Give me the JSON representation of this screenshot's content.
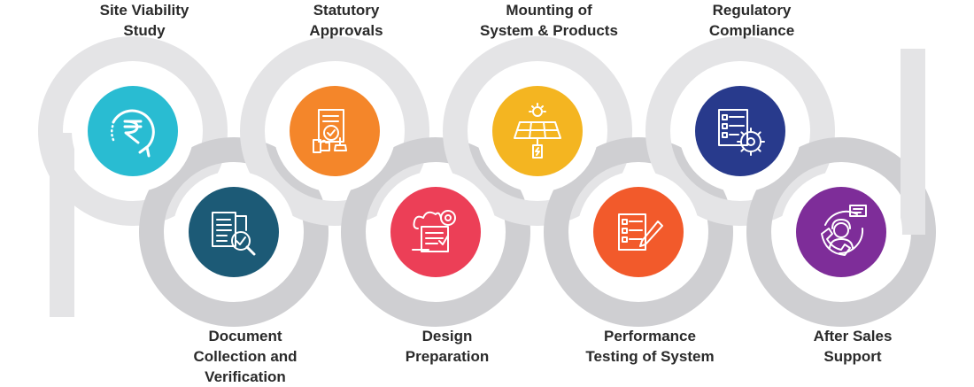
{
  "colors": {
    "track_light": "#e4e4e6",
    "track_dark": "#cfcfd2",
    "text": "#2a2a2a",
    "icon_line": "#ffffff"
  },
  "steps": [
    {
      "lines": [
        "Site Viability",
        "Study"
      ],
      "color": "#29bcd2",
      "icon": "rupee-cycle-icon"
    },
    {
      "lines": [
        "Document",
        "Collection and",
        "Verification"
      ],
      "color": "#1c5a76",
      "icon": "document-verification-icon"
    },
    {
      "lines": [
        "Statutory",
        "Approvals"
      ],
      "color": "#f4862a",
      "icon": "approval-stamp-icon"
    },
    {
      "lines": [
        "Design",
        "Preparation"
      ],
      "color": "#ec3f57",
      "icon": "design-blueprint-icon"
    },
    {
      "lines": [
        "Mounting of",
        "System & Products"
      ],
      "color": "#f4b521",
      "icon": "solar-panel-icon"
    },
    {
      "lines": [
        "Performance",
        "Testing of System"
      ],
      "color": "#f25a2b",
      "icon": "checklist-pen-icon"
    },
    {
      "lines": [
        "Regulatory",
        "Compliance"
      ],
      "color": "#283a8c",
      "icon": "compliance-gear-icon"
    },
    {
      "lines": [
        "After Sales",
        "Support"
      ],
      "color": "#7e2d99",
      "icon": "customer-support-icon"
    }
  ]
}
